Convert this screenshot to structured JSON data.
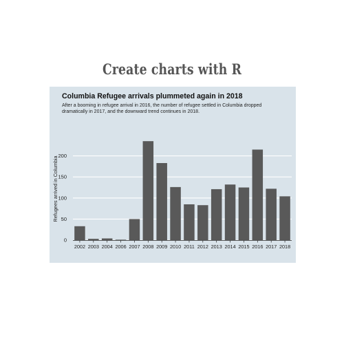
{
  "banner": {
    "text": "Create charts with R"
  },
  "chart_data": {
    "type": "bar",
    "title": "Columbia Refugee arrivals plummeted again in 2018",
    "subtitle": "After a booming in refugee arrival in 2016, the number of refugee settled in Columbia dropped dramatically in 2017, and the downward trend continues in 2018.",
    "ylabel": "Refugees arrived in Columbia",
    "xlabel": "",
    "ylim": [
      0,
      250
    ],
    "yticks": [
      0,
      50,
      100,
      150,
      200
    ],
    "grid": true,
    "categories": [
      "2002",
      "2003",
      "2004",
      "2006",
      "2007",
      "2008",
      "2009",
      "2010",
      "2011",
      "2012",
      "2013",
      "2014",
      "2015",
      "2016",
      "2017",
      "2018"
    ],
    "values": [
      33,
      3,
      4,
      1,
      50,
      235,
      183,
      126,
      85,
      83,
      121,
      132,
      125,
      215,
      122,
      104
    ],
    "colors": {
      "bar": "#595959",
      "panel": "#d9e3ea",
      "grid": "#ffffff",
      "axis": "#222222"
    }
  }
}
